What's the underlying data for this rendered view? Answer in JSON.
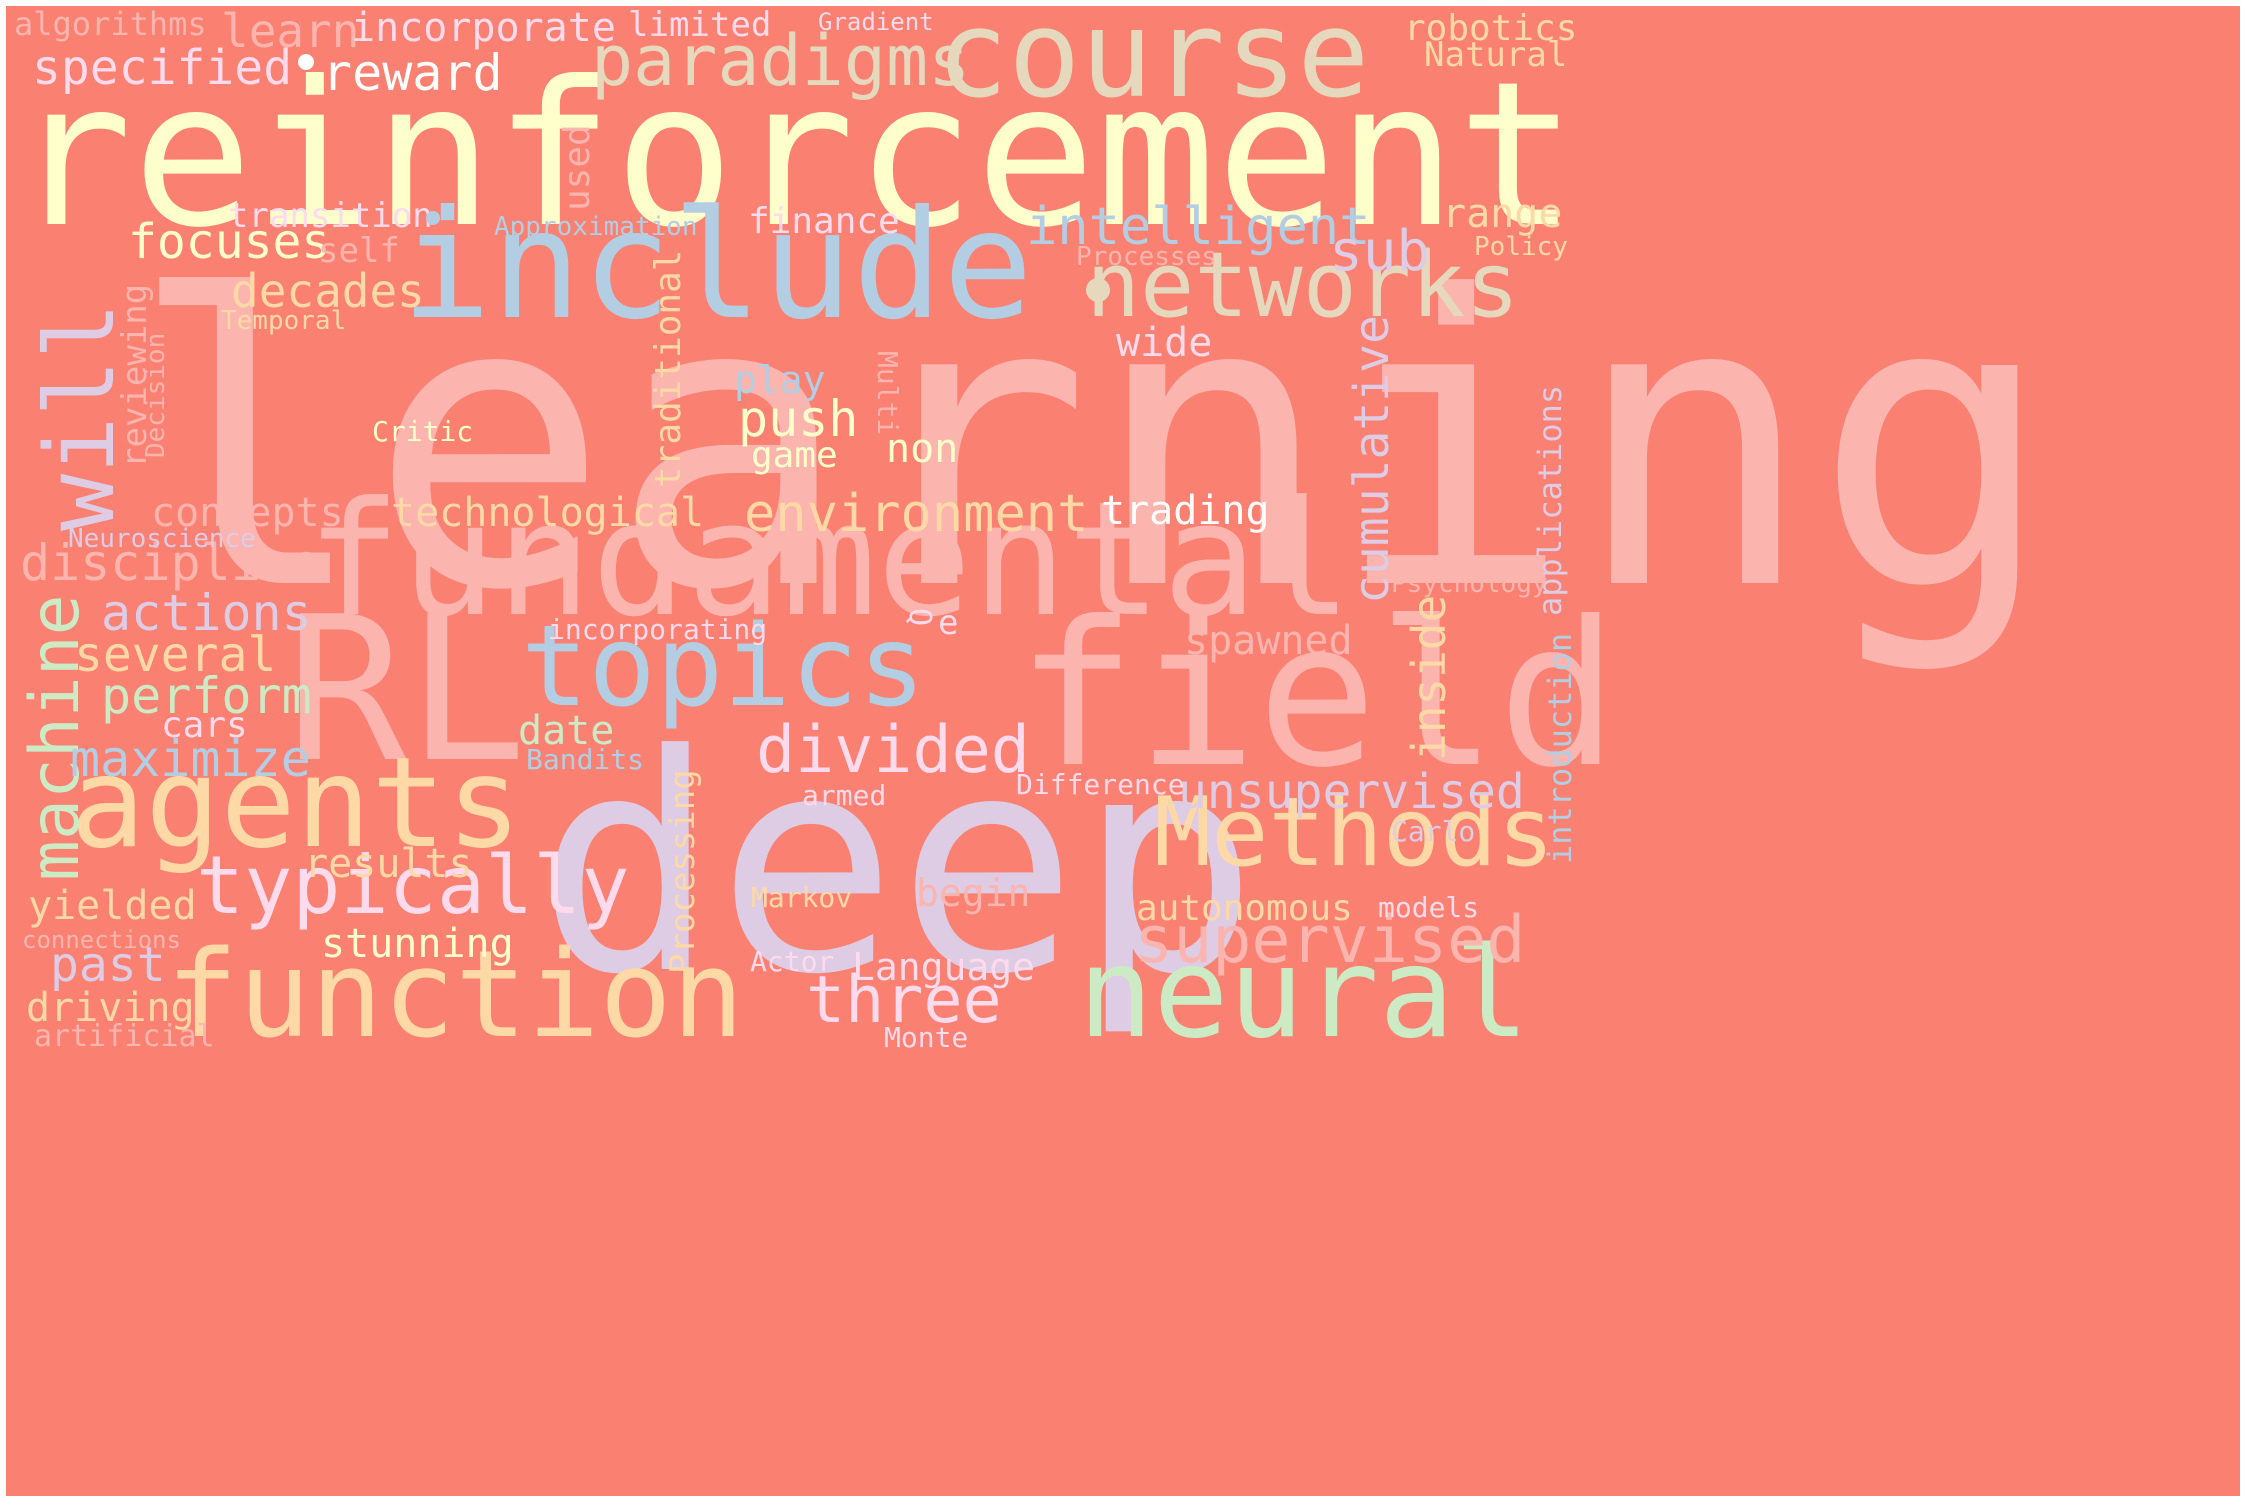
{
  "palette": {
    "background": "#FA8072",
    "pink": "#FBB4AE",
    "blue": "#B3CDE3",
    "green": "#CCEBC5",
    "lavender": "#DECBE4",
    "orange": "#FED9A6",
    "yellow": "#FFFFCC",
    "tan": "#E5D8BD",
    "rose": "#FDDAEC"
  },
  "words": {
    "learning": "learning",
    "reinforcement": "reinforcement",
    "deep": "deep",
    "field": "field",
    "fundamental": "fundamental",
    "RL": "RL",
    "include": "include",
    "course": "course",
    "agents": "agents",
    "function": "function",
    "neural": "neural",
    "topics": "topics",
    "networks": "networks",
    "will": "will",
    "Methods": "Methods",
    "machine": "machine",
    "typically": "typically",
    "divided": "divided",
    "paradigms": "paradigms",
    "supervised": "supervised",
    "three": "three",
    "unsupervised": "unsupervised",
    "intelligent": "intelligent",
    "environment": "environment",
    "sub": "sub",
    "cumulative": "cumulative",
    "reward": "reward",
    "specified": "specified",
    "learn": "learn",
    "incorporate": "incorporate",
    "algorithms": "algorithms",
    "focuses": "focuses",
    "decades": "decades",
    "actions": "actions",
    "discipline": "discipline",
    "perform": "perform",
    "several": "several",
    "maximize": "maximize",
    "push": "push",
    "traditional": "traditional",
    "inside": "inside",
    "spawned": "spawned",
    "past": "past",
    "stunning": "stunning",
    "yielded": "yielded",
    "results": "results",
    "driving": "driving",
    "cars": "cars",
    "date": "date",
    "concepts": "concepts",
    "technological": "technological",
    "transition": "transition",
    "self": "self",
    "finance": "finance",
    "range": "range",
    "wide": "wide",
    "play": "play",
    "game": "game",
    "non": "non",
    "trading": "trading",
    "autonomous": "autonomous",
    "Language": "Language",
    "begin": "begin",
    "models": "models",
    "Processing": "Processing",
    "applications": "applications",
    "introduction": "introduction",
    "robotics": "robotics",
    "Natural": "Natural",
    "limited": "limited",
    "Gradient": "Gradient",
    "used": "used",
    "Approximation": "Approximation",
    "Processes": "Processes",
    "Policy": "Policy",
    "Temporal": "Temporal",
    "reviewing": "reviewing",
    "Decision": "Decision",
    "Critic": "Critic",
    "Multi": "Multi",
    "Neuroscience": "Neuroscience",
    "Psychology": "Psychology",
    "incorporating": "incorporating",
    "Q": "Q",
    "e": "e",
    "Bandits": "Bandits",
    "armed": "armed",
    "Difference": "Difference",
    "Carlo": "Carlo",
    "Markov": "Markov",
    "Actor": "Actor",
    "Monte": "Monte",
    "connections": "connections",
    "artificial": "artificial"
  }
}
